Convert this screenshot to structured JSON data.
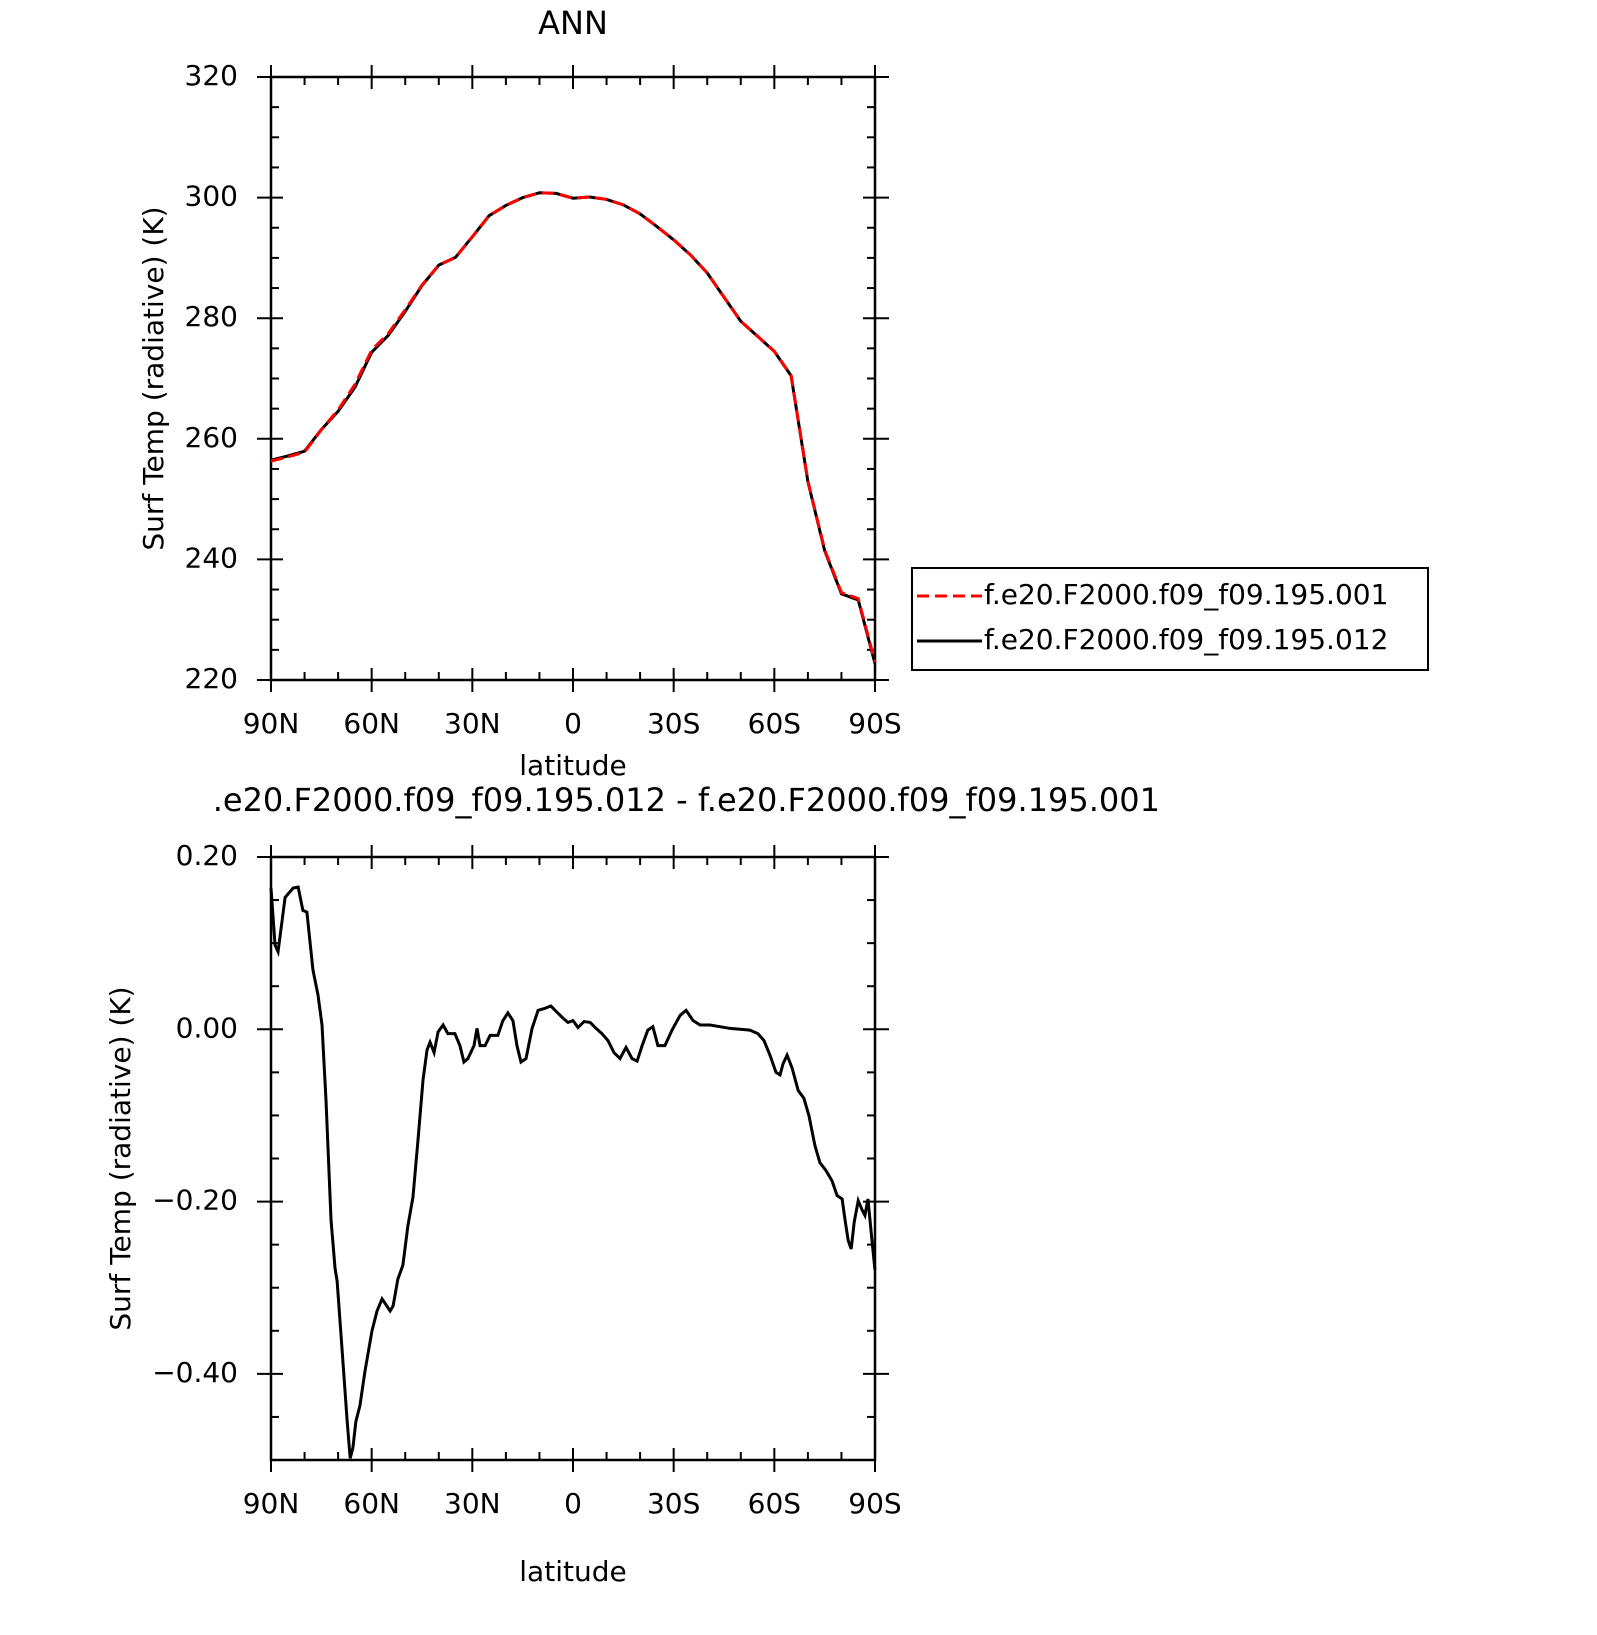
{
  "chart_data": [
    {
      "type": "line",
      "title": "ANN",
      "x_label": "latitude",
      "y_label": "Surf Temp (radiative) (K)",
      "x": [
        90,
        85,
        80,
        75,
        70,
        65,
        60,
        55,
        50,
        45,
        40,
        35,
        30,
        25,
        20,
        15,
        10,
        5,
        0,
        -5,
        -10,
        -15,
        -20,
        -25,
        -30,
        -35,
        -40,
        -45,
        -50,
        -55,
        -60,
        -65,
        -70,
        -75,
        -80,
        -85,
        -90
      ],
      "series": [
        {
          "name": "f.e20.F2000.f09_f09.195.001",
          "color": "#ff0000",
          "dash": "dashed",
          "values": [
            256.3,
            257.0,
            257.8,
            261.5,
            264.8,
            269.0,
            274.7,
            277.5,
            281.4,
            285.5,
            288.8,
            290.1,
            293.5,
            297.0,
            298.7,
            300.0,
            300.8,
            300.7,
            299.9,
            300.1,
            299.7,
            298.8,
            297.3,
            295.2,
            293.0,
            290.5,
            287.5,
            283.5,
            279.5,
            277.0,
            274.5,
            270.5,
            253.0,
            241.6,
            234.5,
            233.5,
            223.0
          ]
        },
        {
          "name": "f.e20.F2000.f09_f09.195.012",
          "color": "#000000",
          "dash": "solid",
          "values": [
            256.46,
            257.15,
            257.94,
            261.52,
            264.55,
            268.52,
            274.35,
            277.18,
            281.13,
            285.42,
            288.8,
            290.1,
            293.5,
            297.0,
            298.7,
            300.0,
            300.8,
            300.7,
            299.9,
            300.1,
            299.7,
            298.8,
            297.3,
            295.2,
            293.0,
            290.5,
            287.5,
            283.5,
            279.5,
            277.0,
            274.5,
            270.46,
            252.9,
            241.44,
            234.3,
            233.28,
            222.72
          ]
        }
      ],
      "xlim": [
        90,
        -90
      ],
      "xticks": [
        {
          "value": 90,
          "label": "90N"
        },
        {
          "value": 60,
          "label": "60N"
        },
        {
          "value": 30,
          "label": "30N"
        },
        0,
        {
          "value": -30,
          "label": "30S"
        },
        {
          "value": -60,
          "label": "60S"
        },
        {
          "value": -90,
          "label": "90S"
        }
      ],
      "xminorticks": [
        80,
        70,
        50,
        40,
        20,
        10,
        -10,
        -20,
        -40,
        -50,
        -70,
        -80
      ],
      "ylim": [
        220,
        320
      ],
      "yticks": [
        220,
        240,
        260,
        280,
        300,
        320
      ],
      "yminorticks": [
        225,
        230,
        235,
        245,
        250,
        255,
        265,
        270,
        275,
        285,
        290,
        295,
        305,
        310,
        315
      ],
      "legend": "right"
    },
    {
      "type": "line",
      "title": ".e20.F2000.f09_f09.195.012 - f.e20.F2000.f09_f09.195.001",
      "x_label": "latitude",
      "y_label": "Surf Temp (radiative) (K)",
      "x": [
        90.0,
        88.8,
        87.9,
        85.8,
        83.4,
        81.9,
        80.5,
        79.3,
        77.5,
        76.0,
        74.8,
        73.6,
        72.1,
        70.9,
        70.3,
        68.8,
        67.3,
        66.4,
        65.6,
        64.7,
        63.5,
        62.0,
        59.9,
        58.4,
        56.9,
        54.5,
        53.6,
        52.2,
        50.7,
        49.2,
        47.7,
        46.2,
        44.7,
        43.5,
        42.6,
        41.4,
        40.2,
        38.7,
        37.3,
        35.2,
        33.7,
        32.5,
        31.3,
        29.5,
        28.6,
        27.7,
        26.2,
        24.7,
        22.4,
        20.9,
        19.4,
        17.9,
        16.7,
        15.5,
        14.0,
        12.2,
        10.4,
        8.6,
        6.6,
        4.8,
        3.0,
        1.5,
        0.0,
        -1.5,
        -3.3,
        -5.1,
        -6.9,
        -8.6,
        -10.4,
        -12.2,
        -14.0,
        -15.8,
        -17.6,
        -19.1,
        -20.6,
        -22.3,
        -23.8,
        -25.3,
        -27.4,
        -29.5,
        -31.9,
        -33.7,
        -35.8,
        -37.9,
        -40.8,
        -43.8,
        -46.8,
        -49.8,
        -52.7,
        -55.1,
        -56.9,
        -58.7,
        -60.5,
        -61.7,
        -62.6,
        -63.8,
        -65.3,
        -67.1,
        -68.8,
        -70.3,
        -72.1,
        -73.6,
        -75.4,
        -77.2,
        -78.7,
        -80.2,
        -81.1,
        -82.0,
        -82.9,
        -83.8,
        -85.0,
        -86.2,
        -87.0,
        -87.9,
        -89.1,
        -90.0
      ],
      "values": [
        0.164,
        0.098,
        0.09,
        0.153,
        0.164,
        0.165,
        0.138,
        0.136,
        0.069,
        0.04,
        0.005,
        -0.083,
        -0.222,
        -0.278,
        -0.292,
        -0.373,
        -0.455,
        -0.498,
        -0.486,
        -0.455,
        -0.437,
        -0.397,
        -0.35,
        -0.327,
        -0.313,
        -0.327,
        -0.321,
        -0.29,
        -0.274,
        -0.228,
        -0.195,
        -0.129,
        -0.059,
        -0.024,
        -0.015,
        -0.027,
        -0.003,
        0.005,
        -0.005,
        -0.005,
        -0.019,
        -0.038,
        -0.034,
        -0.019,
        0.001,
        -0.019,
        -0.019,
        -0.007,
        -0.007,
        0.01,
        0.019,
        0.01,
        -0.019,
        -0.038,
        -0.034,
        0.001,
        0.022,
        0.024,
        0.027,
        0.02,
        0.013,
        0.008,
        0.01,
        0.002,
        0.009,
        0.008,
        0.001,
        -0.005,
        -0.013,
        -0.027,
        -0.034,
        -0.021,
        -0.034,
        -0.037,
        -0.019,
        -0.001,
        0.003,
        -0.019,
        -0.019,
        -0.001,
        0.016,
        0.022,
        0.01,
        0.005,
        0.005,
        0.003,
        0.001,
        0.0,
        -0.001,
        -0.005,
        -0.013,
        -0.03,
        -0.05,
        -0.053,
        -0.04,
        -0.03,
        -0.045,
        -0.071,
        -0.08,
        -0.1,
        -0.135,
        -0.155,
        -0.164,
        -0.176,
        -0.193,
        -0.197,
        -0.222,
        -0.245,
        -0.255,
        -0.224,
        -0.199,
        -0.21,
        -0.216,
        -0.197,
        -0.245,
        -0.28
      ],
      "color": "#000000",
      "xlim": [
        90,
        -90
      ],
      "xticks": [
        {
          "value": 90,
          "label": "90N"
        },
        {
          "value": 60,
          "label": "60N"
        },
        {
          "value": 30,
          "label": "30N"
        },
        0,
        {
          "value": -30,
          "label": "30S"
        },
        {
          "value": -60,
          "label": "60S"
        },
        {
          "value": -90,
          "label": "90S"
        }
      ],
      "xminorticks": [
        80,
        70,
        50,
        40,
        20,
        10,
        -10,
        -20,
        -40,
        -50,
        -70,
        -80
      ],
      "ylim": [
        -0.5,
        0.2
      ],
      "yticks": [
        {
          "value": -0.4,
          "label": "−0.40"
        },
        {
          "value": -0.2,
          "label": "−0.20"
        },
        {
          "value": 0,
          "label": "0.00"
        },
        {
          "value": 0.2,
          "label": "0.20"
        }
      ],
      "yminorticks": [
        -0.45,
        -0.35,
        -0.3,
        -0.25,
        -0.15,
        -0.1,
        -0.05,
        0.05,
        0.1,
        0.15
      ]
    }
  ]
}
